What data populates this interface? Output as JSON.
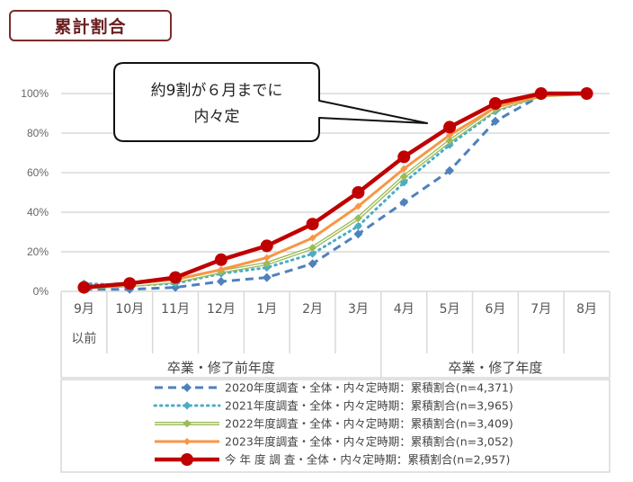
{
  "header": {
    "title": "累計割合"
  },
  "callout": {
    "line1": "約9割が６月までに",
    "line2": "内々定"
  },
  "colors": {
    "s2020": "#4f81bd",
    "s2021": "#4bacc6",
    "s2022": "#9bbb59",
    "s2023": "#f79646",
    "current": "#c00000",
    "grid": "#d9d9d9",
    "title_border": "#7b2c2c"
  },
  "axis": {
    "y_ticks": [
      "0%",
      "20%",
      "40%",
      "60%",
      "80%",
      "100%"
    ],
    "x_ticks": [
      "9月",
      "10月",
      "11月",
      "12月",
      "1月",
      "2月",
      "3月",
      "4月",
      "5月",
      "6月",
      "7月",
      "8月"
    ],
    "x_tick_sub": "以前",
    "groups": [
      "卒業・修了前年度",
      "卒業・修了年度"
    ]
  },
  "legend": [
    "2020年度調査・全体・内々定時期：累積割合(n=4,371)",
    "2021年度調査・全体・内々定時期：累積割合(n=3,965)",
    "2022年度調査・全体・内々定時期：累積割合(n=3,409)",
    "2023年度調査・全体・内々定時期：累積割合(n=3,052)",
    "今 年 度 調 査・全体・内々定時期：累積割合(n=2,957)"
  ],
  "chart_data": {
    "type": "line",
    "title": "累計割合",
    "xlabel": "",
    "ylabel": "",
    "ylim": [
      0,
      100
    ],
    "grid": true,
    "legend_position": "bottom",
    "categories": [
      "9月以前",
      "10月",
      "11月",
      "12月",
      "1月",
      "2月",
      "3月",
      "4月",
      "5月",
      "6月",
      "7月",
      "8月"
    ],
    "category_groups": [
      {
        "label": "卒業・修了前年度",
        "range": [
          "9月以前",
          "3月"
        ]
      },
      {
        "label": "卒業・修了年度",
        "range": [
          "4月",
          "8月"
        ]
      }
    ],
    "series": [
      {
        "name": "2020年度調査・全体・内々定時期：累積割合(n=4,371)",
        "style": "dashed",
        "values": [
          1,
          1,
          2,
          5,
          7,
          14,
          29,
          45,
          61,
          86,
          99,
          100
        ]
      },
      {
        "name": "2021年度調査・全体・内々定時期：累積割合(n=3,965)",
        "style": "dotted",
        "values": [
          4,
          3,
          4,
          9,
          12,
          19,
          33,
          55,
          74,
          91,
          99,
          100
        ]
      },
      {
        "name": "2022年度調査・全体・内々定時期：累積割合(n=3,409)",
        "style": "double",
        "values": [
          2,
          3,
          5,
          10,
          14,
          22,
          37,
          58,
          76,
          92,
          99,
          100
        ]
      },
      {
        "name": "2023年度調査・全体・内々定時期：累積割合(n=3,052)",
        "style": "solid",
        "values": [
          2,
          4,
          6,
          11,
          17,
          27,
          43,
          62,
          79,
          93,
          99,
          100
        ]
      },
      {
        "name": "今年度調査・全体・内々定時期：累積割合(n=2,957)",
        "style": "solid-thick",
        "values": [
          2,
          4,
          7,
          16,
          23,
          34,
          50,
          68,
          83,
          95,
          100,
          100
        ]
      }
    ],
    "annotations": [
      "約9割が６月までに内々定"
    ]
  }
}
